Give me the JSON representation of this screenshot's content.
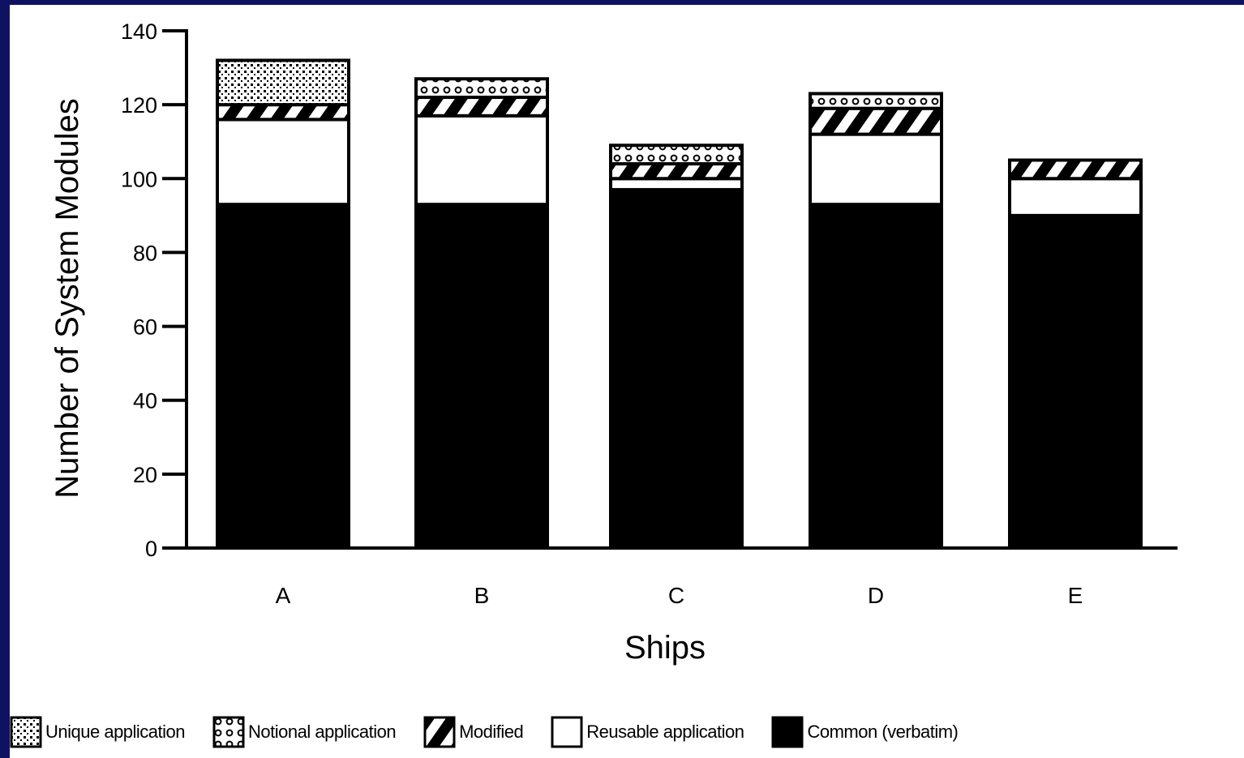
{
  "chart_data": {
    "type": "bar",
    "stacked": true,
    "title": "",
    "xlabel": "Ships",
    "ylabel": "Number of System Modules",
    "ylim": [
      0,
      140
    ],
    "yticks": [
      0,
      20,
      40,
      60,
      80,
      100,
      120,
      140
    ],
    "ytick_labels": [
      "0",
      "20",
      "40",
      "60",
      "80",
      "100",
      "120",
      "140"
    ],
    "categories": [
      "A",
      "B",
      "C",
      "D",
      "E"
    ],
    "series": [
      {
        "name": "Common (verbatim)",
        "pattern": "solid",
        "values": [
          93,
          93,
          97,
          93,
          90
        ]
      },
      {
        "name": "Reusable application",
        "pattern": "white",
        "values": [
          23,
          24,
          3,
          19,
          10
        ]
      },
      {
        "name": "Modified",
        "pattern": "hatch",
        "values": [
          4,
          5,
          4,
          7,
          5
        ]
      },
      {
        "name": "Notional application",
        "pattern": "circles",
        "values": [
          0,
          5,
          5,
          4,
          0
        ]
      },
      {
        "name": "Unique application",
        "pattern": "dots",
        "values": [
          12,
          0,
          0,
          0,
          0
        ]
      }
    ],
    "grid": false,
    "legend_position": "bottom"
  },
  "legend": [
    {
      "label": "Unique application",
      "pattern": "dots"
    },
    {
      "label": "Notional application",
      "pattern": "circles"
    },
    {
      "label": "Modified",
      "pattern": "hatch"
    },
    {
      "label": "Reusable application",
      "pattern": "white"
    },
    {
      "label": "Common (verbatim)",
      "pattern": "solid"
    }
  ],
  "colors": {
    "page_background": "#0e1260",
    "panel": "#ffffff",
    "ink": "#000000"
  }
}
